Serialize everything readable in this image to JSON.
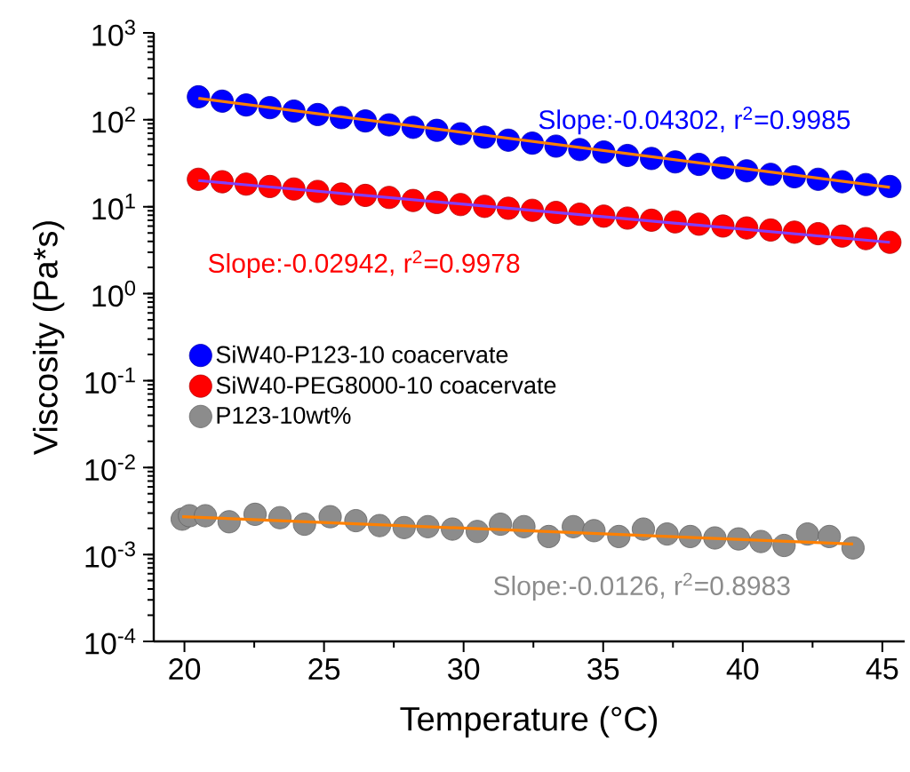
{
  "chart_data": {
    "type": "scatter",
    "xlabel": "Temperature (°C)",
    "ylabel": "Viscosity (Pa*s)",
    "log": "y",
    "legend": "left",
    "marker": "circle",
    "xlim": [
      18.9,
      45.8
    ],
    "ylim": [
      0.0001,
      1000
    ],
    "xticks": [
      20,
      25,
      30,
      35,
      40,
      45
    ],
    "yticks": [
      {
        "value": 0.0001,
        "label": "10$^{-4}$"
      },
      {
        "value": 0.001,
        "label": "10$^{-3}$"
      },
      {
        "value": 0.01,
        "label": "10$^{-2}$"
      },
      {
        "value": 0.1,
        "label": "10$^{-1}$"
      },
      {
        "value": 1,
        "label": "10$^{0}$"
      },
      {
        "value": 10,
        "label": "10$^{1}$"
      },
      {
        "value": 100,
        "label": "10$^{2}$"
      },
      {
        "value": 1000,
        "label": "10$^{3}$"
      }
    ],
    "series": [
      {
        "name": "SiW40-P123-10 coacervate",
        "color": "#0000ff",
        "x": [
          20.5,
          21.35,
          22.21,
          23.06,
          23.92,
          24.77,
          25.62,
          26.48,
          27.33,
          28.19,
          29.04,
          29.89,
          30.75,
          31.6,
          32.46,
          33.31,
          34.16,
          35.02,
          35.87,
          36.73,
          37.58,
          38.43,
          39.29,
          40.14,
          41.0,
          41.85,
          42.7,
          43.56,
          44.41,
          45.27
        ],
        "values": [
          184,
          164,
          148,
          138,
          126,
          115,
          106,
          97,
          87.5,
          81.9,
          75.7,
          69.1,
          63.1,
          58.3,
          53.9,
          49.8,
          45.5,
          42.6,
          38.9,
          35.9,
          32.8,
          30.7,
          28.0,
          25.9,
          23.6,
          22.1,
          20.7,
          19.4,
          18.0,
          17.1
        ]
      },
      {
        "name": "SiW40-PEG8000-10 coacervate",
        "color": "#ff0000",
        "x": [
          20.5,
          21.35,
          22.21,
          23.06,
          23.92,
          24.77,
          25.62,
          26.48,
          27.33,
          28.19,
          29.04,
          29.89,
          30.75,
          31.6,
          32.46,
          33.31,
          34.16,
          35.02,
          35.87,
          36.73,
          37.58,
          38.43,
          39.29,
          40.14,
          41.0,
          41.85,
          42.7,
          43.56,
          44.41,
          45.27
        ],
        "values": [
          20.7,
          19.4,
          18.2,
          17.1,
          16.0,
          15.0,
          14.0,
          13.5,
          12.8,
          11.8,
          11.2,
          10.6,
          10.1,
          9.6,
          9.1,
          8.6,
          8.2,
          7.8,
          7.4,
          7.0,
          6.7,
          6.3,
          6.0,
          5.7,
          5.4,
          5.1,
          4.9,
          4.6,
          4.3,
          3.9
        ]
      },
      {
        "name": "P123-10wt%",
        "color": "#8c8c8c",
        "x": [
          19.92,
          20.18,
          20.75,
          21.6,
          22.53,
          23.42,
          24.3,
          25.22,
          26.14,
          26.99,
          27.87,
          28.72,
          29.6,
          30.49,
          31.32,
          32.16,
          33.05,
          33.93,
          34.67,
          35.56,
          36.44,
          37.29,
          38.12,
          39.0,
          39.85,
          40.65,
          41.48,
          42.32,
          43.1,
          43.95
        ],
        "values": [
          0.00255,
          0.00279,
          0.00279,
          0.00238,
          0.0029,
          0.00265,
          0.00223,
          0.00272,
          0.00245,
          0.00215,
          0.00204,
          0.00209,
          0.00196,
          0.00184,
          0.00223,
          0.00209,
          0.00161,
          0.00209,
          0.00188,
          0.00161,
          0.00196,
          0.00172,
          0.00161,
          0.00155,
          0.00151,
          0.00141,
          0.00127,
          0.00172,
          0.00161,
          0.00119
        ]
      },
      {
        "type": "line",
        "marker": "none",
        "color": "#ff8000",
        "x": [
          20.5,
          45.27
        ],
        "values": [
          177,
          16.7
        ]
      },
      {
        "type": "line",
        "marker": "none",
        "color": "#8040ff",
        "x": [
          20.5,
          45.27
        ],
        "values": [
          20.0,
          3.9
        ]
      },
      {
        "type": "line",
        "marker": "none",
        "color": "#ff8000",
        "x": [
          19.92,
          43.95
        ],
        "values": [
          0.00272,
          0.00132
        ]
      }
    ],
    "annotations": [
      "Slope:-0.04302, r$^{2}$=0.9985",
      "Slope:-0.02942, r$^{2}$=0.9978",
      "Slope:-0.0126, r$^{2}$=0.8983"
    ]
  }
}
